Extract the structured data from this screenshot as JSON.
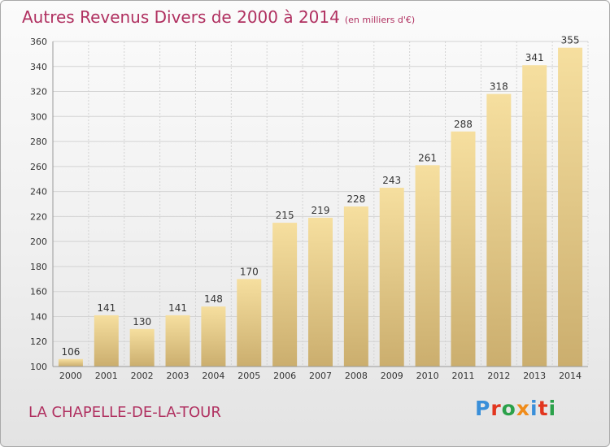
{
  "chart_title": {
    "main": "Autres Revenus Divers de 2000 à 2014",
    "unit": "(en milliers d'€)"
  },
  "location_label": "LA CHAPELLE-DE-LA-TOUR",
  "logo": {
    "text": "Proxiti",
    "letter_colors": [
      "#3a8fd9",
      "#e2361f",
      "#2ba14a",
      "#f08c1a",
      "#3a8fd9",
      "#e2361f",
      "#2ba14a"
    ]
  },
  "colors": {
    "title": "#b03060",
    "bar_light": "#f5dc9c",
    "bar_dark": "#cdb071",
    "grid": "#d3d3d3",
    "axis_text": "#333333"
  },
  "chart_data": {
    "type": "bar",
    "categories": [
      "2000",
      "2001",
      "2002",
      "2003",
      "2004",
      "2005",
      "2006",
      "2007",
      "2008",
      "2009",
      "2010",
      "2011",
      "2012",
      "2013",
      "2014"
    ],
    "values": [
      106,
      141,
      130,
      141,
      148,
      170,
      215,
      219,
      228,
      243,
      261,
      288,
      318,
      341,
      355
    ],
    "ylim": [
      100,
      360
    ],
    "yticks": [
      100,
      120,
      140,
      160,
      180,
      200,
      220,
      240,
      260,
      280,
      300,
      320,
      340,
      360
    ],
    "grid": true,
    "data_labels": true
  }
}
